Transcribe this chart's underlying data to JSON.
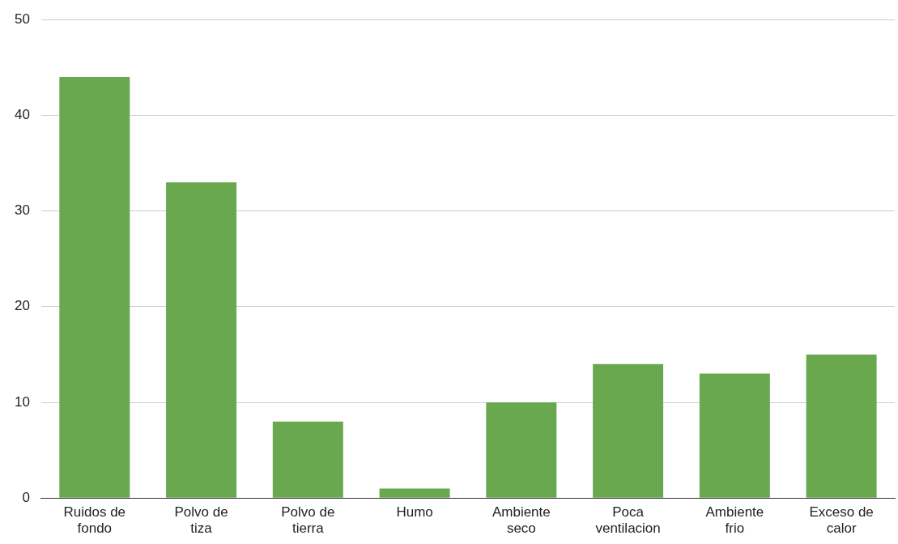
{
  "chart_data": {
    "type": "bar",
    "categories": [
      "Ruidos de fondo",
      "Polvo de tiza",
      "Polvo de tierra",
      "Humo",
      "Ambiente seco",
      "Poca ventilacion",
      "Ambiente frio",
      "Exceso de calor"
    ],
    "values": [
      44,
      33,
      8,
      1,
      10,
      14,
      13,
      15
    ],
    "color": "#6aa84f",
    "ylim": [
      0,
      50
    ],
    "yticks": [
      0,
      10,
      20,
      30,
      40,
      50
    ],
    "grid": "y",
    "legend": false
  }
}
